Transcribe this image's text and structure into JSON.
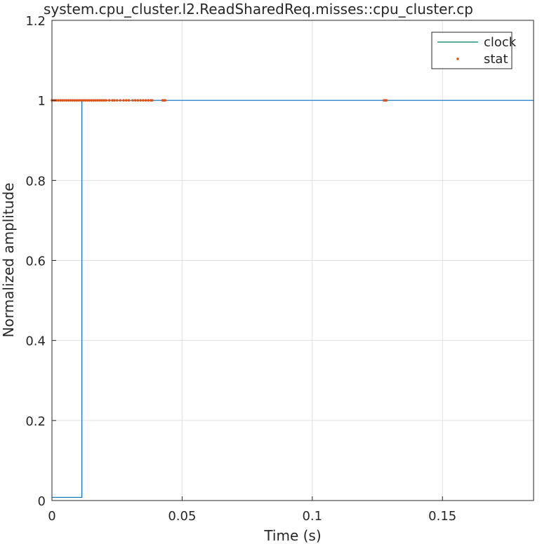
{
  "chart_data": {
    "type": "line",
    "title": "system.cpu_cluster.l2.ReadSharedReq.misses::cpu_cluster.cp",
    "xlabel": "Time (s)",
    "ylabel": "Normalized amplitude",
    "xlim": [
      0,
      0.185
    ],
    "ylim": [
      0,
      1.2
    ],
    "x_ticks": [
      0,
      0.05,
      0.1,
      0.15
    ],
    "x_tick_labels": [
      "0",
      "0.05",
      "0.1",
      "0.15"
    ],
    "y_ticks": [
      0,
      0.2,
      0.4,
      0.6,
      0.8,
      1,
      1.2
    ],
    "y_tick_labels": [
      "0",
      "0.2",
      "0.4",
      "0.6",
      "0.8",
      "1",
      "1.2"
    ],
    "grid": true,
    "legend_position": "top-right",
    "series": [
      {
        "name": "clock",
        "style": "line",
        "color": "#0072BD",
        "legend_color": "#00796B",
        "x": [
          0,
          0.0115,
          0.0115,
          0.185
        ],
        "y": [
          0.008,
          0.008,
          1,
          1
        ]
      },
      {
        "name": "stat",
        "style": "markers",
        "color": "#D95319",
        "x": [
          0.0,
          0.0008,
          0.0016,
          0.0024,
          0.0032,
          0.004,
          0.0048,
          0.0056,
          0.0064,
          0.0072,
          0.008,
          0.0088,
          0.0096,
          0.0104,
          0.0112,
          0.012,
          0.0128,
          0.0136,
          0.0144,
          0.0152,
          0.016,
          0.0168,
          0.0176,
          0.0184,
          0.0192,
          0.02,
          0.0208,
          0.022,
          0.0232,
          0.024,
          0.025,
          0.0262,
          0.0275,
          0.0285,
          0.0295,
          0.031,
          0.032,
          0.033,
          0.034,
          0.035,
          0.036,
          0.037,
          0.038,
          0.0385,
          0.0425,
          0.043,
          0.0435,
          0.1275,
          0.128,
          0.1285
        ],
        "y": [
          1,
          1,
          1,
          1,
          1,
          1,
          1,
          1,
          1,
          1,
          1,
          1,
          1,
          1,
          1,
          1,
          1,
          1,
          1,
          1,
          1,
          1,
          1,
          1,
          1,
          1,
          1,
          1,
          1,
          1,
          1,
          1,
          1,
          1,
          1,
          1,
          1,
          1,
          1,
          1,
          1,
          1,
          1,
          1,
          1,
          1,
          1,
          1,
          1,
          1
        ]
      }
    ]
  }
}
